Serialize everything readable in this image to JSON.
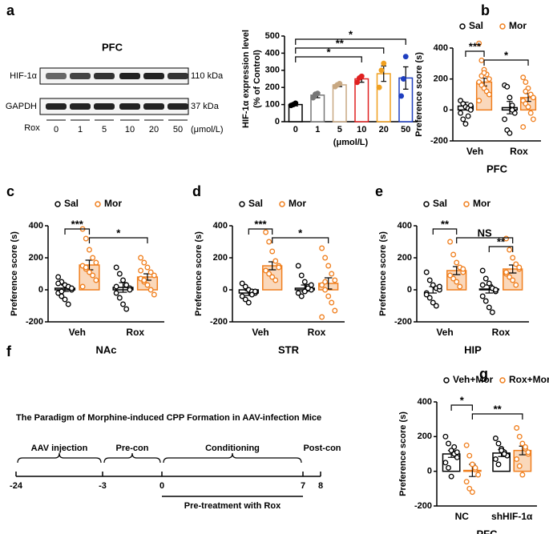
{
  "panel_labels": [
    "a",
    "b",
    "c",
    "d",
    "e",
    "f",
    "g"
  ],
  "blot": {
    "title": "PFC",
    "rows": [
      {
        "name": "HIF-1α",
        "size": "110 kDa"
      },
      {
        "name": "GAPDH",
        "size": "37 kDa"
      }
    ],
    "treatment": "Rox",
    "lanes": [
      "0",
      "1",
      "5",
      "10",
      "20",
      "50"
    ],
    "unit": "(μmol/L)"
  },
  "timeline": {
    "title": "The Paradigm of Morphine-induced CPP Formation in AAV-infection Mice",
    "ticks": [
      -24,
      -3,
      0,
      7,
      8
    ],
    "phases": [
      "AAV injection",
      "Pre-con",
      "Conditioning",
      "Post-con"
    ],
    "pretreatment": "Pre-treatment with Rox"
  },
  "chart_data": [
    {
      "type": "bar",
      "ylabel": [
        "HIF-1α expression level",
        "(% of Control)"
      ],
      "xlabel": "(μmol/L)",
      "categories": [
        "0",
        "1",
        "5",
        "10",
        "20",
        "50"
      ],
      "values": [
        100,
        155,
        215,
        250,
        280,
        255
      ],
      "errors": [
        8,
        15,
        10,
        20,
        45,
        65
      ],
      "colors": [
        "#000000",
        "#777777",
        "#c8a882",
        "#e02020",
        "#f0a020",
        "#1f3fc0"
      ],
      "points": [
        [
          95,
          100,
          108
        ],
        [
          140,
          160,
          165
        ],
        [
          205,
          215,
          222
        ],
        [
          230,
          255,
          265
        ],
        [
          200,
          300,
          340
        ],
        [
          150,
          250,
          380
        ]
      ],
      "ylim": [
        0,
        500
      ],
      "yticks": [
        0,
        100,
        200,
        300,
        400,
        500
      ],
      "significance": [
        {
          "label": "*",
          "from": 0,
          "to": 5
        },
        {
          "label": "**",
          "from": 0,
          "to": 4
        },
        {
          "label": "*",
          "from": 0,
          "to": 3
        }
      ]
    },
    {
      "type": "grouped-bar",
      "ylabel": "Preference score (s)",
      "xlabel": "PFC",
      "categories": [
        "Veh",
        "Rox"
      ],
      "ylim": [
        -200,
        400
      ],
      "yticks": [
        -200,
        0,
        200,
        400
      ],
      "series": [
        {
          "name": "Sal",
          "color": "#000000",
          "values": [
            25,
            15
          ],
          "errors": [
            25,
            40
          ],
          "points": [
            [
              60,
              40,
              20,
              10,
              0,
              -20,
              -60,
              -90,
              -40,
              30
            ],
            [
              160,
              150,
              80,
              30,
              -20,
              -60,
              -130,
              -150,
              0
            ]
          ]
        },
        {
          "name": "Mor",
          "color": "#f07f1e",
          "values": [
            180,
            80
          ],
          "errors": [
            25,
            25
          ],
          "points": [
            [
              430,
              320,
              260,
              230,
              200,
              180,
              160,
              140,
              120,
              100,
              60,
              220,
              240
            ],
            [
              210,
              180,
              140,
              100,
              80,
              60,
              40,
              20,
              -20,
              -60,
              -110,
              120
            ]
          ]
        }
      ],
      "significance": [
        {
          "label": "***",
          "from": [
            0,
            0
          ],
          "to": [
            0,
            1
          ]
        },
        {
          "label": "*",
          "from": [
            0,
            1
          ],
          "to": [
            1,
            1
          ]
        }
      ]
    },
    {
      "type": "grouped-bar",
      "ylabel": "Preference score (s)",
      "xlabel": "NAc",
      "categories": [
        "Veh",
        "Rox"
      ],
      "ylim": [
        -200,
        400
      ],
      "yticks": [
        -200,
        0,
        200,
        400
      ],
      "series": [
        {
          "name": "Sal",
          "color": "#000000",
          "values": [
            10,
            15
          ],
          "errors": [
            20,
            30
          ],
          "points": [
            [
              80,
              50,
              30,
              20,
              0,
              -20,
              -40,
              -60,
              -90,
              10,
              40,
              -10
            ],
            [
              140,
              100,
              60,
              30,
              10,
              -20,
              -50,
              -90,
              -120,
              0,
              20
            ]
          ]
        },
        {
          "name": "Mor",
          "color": "#f07f1e",
          "values": [
            155,
            80
          ],
          "errors": [
            30,
            20
          ],
          "points": [
            [
              380,
              320,
              250,
              200,
              170,
              150,
              130,
              110,
              90,
              60,
              20,
              140
            ],
            [
              200,
              170,
              140,
              110,
              90,
              70,
              50,
              30,
              0,
              -30,
              120,
              60
            ]
          ]
        }
      ],
      "significance": [
        {
          "label": "***",
          "from": [
            0,
            0
          ],
          "to": [
            0,
            1
          ]
        },
        {
          "label": "*",
          "from": [
            0,
            1
          ],
          "to": [
            1,
            1
          ]
        }
      ]
    },
    {
      "type": "grouped-bar",
      "ylabel": "Preference score (s)",
      "xlabel": "STR",
      "categories": [
        "Veh",
        "Rox"
      ],
      "ylim": [
        -200,
        400
      ],
      "yticks": [
        -200,
        0,
        200,
        400
      ],
      "series": [
        {
          "name": "Sal",
          "color": "#000000",
          "values": [
            -20,
            10
          ],
          "errors": [
            15,
            20
          ],
          "points": [
            [
              40,
              20,
              0,
              -10,
              -20,
              -40,
              -60,
              -80,
              -30,
              -10
            ],
            [
              150,
              90,
              50,
              20,
              0,
              -20,
              -40,
              -10,
              10,
              30
            ]
          ]
        },
        {
          "name": "Mor",
          "color": "#f07f1e",
          "values": [
            150,
            40
          ],
          "errors": [
            25,
            35
          ],
          "points": [
            [
              360,
              300,
              240,
              180,
              150,
              120,
              100,
              80,
              60,
              140
            ],
            [
              260,
              200,
              150,
              100,
              60,
              30,
              0,
              -40,
              -80,
              -130,
              -170,
              50
            ]
          ]
        }
      ],
      "significance": [
        {
          "label": "***",
          "from": [
            0,
            0
          ],
          "to": [
            0,
            1
          ]
        },
        {
          "label": "*",
          "from": [
            0,
            1
          ],
          "to": [
            1,
            1
          ]
        }
      ]
    },
    {
      "type": "grouped-bar",
      "ylabel": "Preference score (s)",
      "xlabel": "HIP",
      "categories": [
        "Veh",
        "Rox"
      ],
      "ylim": [
        -200,
        400
      ],
      "yticks": [
        -200,
        0,
        200,
        400
      ],
      "series": [
        {
          "name": "Sal",
          "color": "#000000",
          "values": [
            0,
            5
          ],
          "errors": [
            20,
            25
          ],
          "points": [
            [
              110,
              60,
              30,
              10,
              0,
              -20,
              -50,
              -80,
              -100,
              20,
              -30
            ],
            [
              120,
              70,
              40,
              10,
              -10,
              -40,
              -70,
              -110,
              -140,
              0,
              30
            ]
          ]
        },
        {
          "name": "Mor",
          "color": "#f07f1e",
          "values": [
            120,
            130
          ],
          "errors": [
            25,
            25
          ],
          "points": [
            [
              300,
              220,
              170,
              140,
              110,
              90,
              70,
              50,
              20,
              130
            ],
            [
              320,
              250,
              200,
              160,
              130,
              100,
              80,
              60,
              30,
              140,
              110
            ]
          ]
        }
      ],
      "significance": [
        {
          "label": "**",
          "from": [
            0,
            0
          ],
          "to": [
            0,
            1
          ]
        },
        {
          "label": "NS",
          "from": [
            0,
            1
          ],
          "to": [
            1,
            1
          ]
        },
        {
          "label": "**",
          "from": [
            1,
            0
          ],
          "to": [
            1,
            1
          ]
        }
      ]
    },
    {
      "type": "grouped-bar",
      "ylabel": "Preference score (s)",
      "xlabel": "PFC",
      "categories": [
        "NC",
        "shHIF-1α"
      ],
      "ylim": [
        -200,
        400
      ],
      "yticks": [
        -200,
        0,
        200,
        400
      ],
      "series": [
        {
          "name": "Veh+Mor",
          "color": "#000000",
          "values": [
            100,
            105
          ],
          "errors": [
            20,
            20
          ],
          "points": [
            [
              200,
              160,
              120,
              100,
              80,
              50,
              20,
              -30,
              140,
              110
            ],
            [
              190,
              160,
              130,
              110,
              90,
              70,
              40,
              120,
              100
            ]
          ]
        },
        {
          "name": "Rox+Mor",
          "color": "#f07f1e",
          "values": [
            5,
            120
          ],
          "errors": [
            35,
            25
          ],
          "points": [
            [
              150,
              90,
              40,
              10,
              -20,
              -60,
              -100,
              -120,
              20
            ],
            [
              250,
              200,
              160,
              130,
              100,
              70,
              30,
              -20,
              140,
              110
            ]
          ]
        }
      ],
      "significance": [
        {
          "label": "*",
          "from": [
            0,
            0
          ],
          "to": [
            0,
            1
          ]
        },
        {
          "label": "**",
          "from": [
            0,
            1
          ],
          "to": [
            1,
            1
          ]
        }
      ]
    }
  ]
}
